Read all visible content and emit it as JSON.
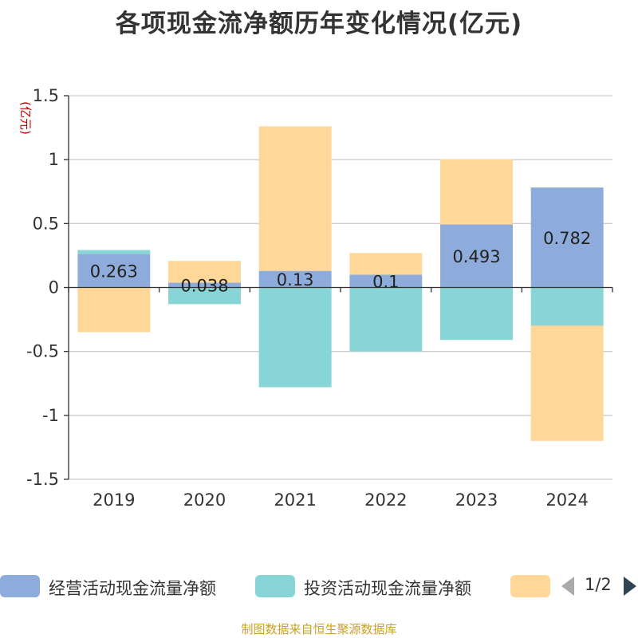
{
  "source_note": "制图数据来自恒生聚源数据库",
  "legend": {
    "items": [
      {
        "label": "经营活动现金流量净额",
        "color": "#8eacdb"
      },
      {
        "label": "投资活动现金流量净额",
        "color": "#88d5d7"
      },
      {
        "label": "",
        "color": "#ffd899"
      }
    ],
    "page_indicator": "1/2"
  },
  "chart_data": {
    "type": "bar",
    "stacked": true,
    "title": "各项现金流净额历年变化情况(亿元)",
    "ylabel": "(亿元)",
    "xlabel": "",
    "categories": [
      "2019",
      "2020",
      "2021",
      "2022",
      "2023",
      "2024"
    ],
    "ylim": [
      -1.5,
      1.5
    ],
    "yticks": [
      {
        "value": 1.5,
        "label": "1.5"
      },
      {
        "value": 1,
        "label": "1"
      },
      {
        "value": 0.5,
        "label": "0.5"
      },
      {
        "value": 0,
        "label": "0"
      },
      {
        "value": -0.5,
        "label": "-0.5"
      },
      {
        "value": -1,
        "label": "-1"
      },
      {
        "value": -1.5,
        "label": "-1.5"
      }
    ],
    "grid": true,
    "legend_position": "bottom",
    "series": [
      {
        "name": "经营活动现金流量净额",
        "color": "#8eacdb",
        "values": [
          0.263,
          0.038,
          0.13,
          0.1,
          0.493,
          0.782
        ],
        "labels": [
          "0.263",
          "0.038",
          "0.13",
          "0.1",
          "0.493",
          "0.782"
        ]
      },
      {
        "name": "投资活动现金流量净额",
        "color": "#88d5d7",
        "values": [
          0.03,
          -0.13,
          -0.78,
          -0.5,
          -0.41,
          -0.3
        ]
      },
      {
        "name": "",
        "color": "#ffd899",
        "values": [
          -0.35,
          0.17,
          1.13,
          0.17,
          0.51,
          -0.9
        ]
      }
    ]
  }
}
